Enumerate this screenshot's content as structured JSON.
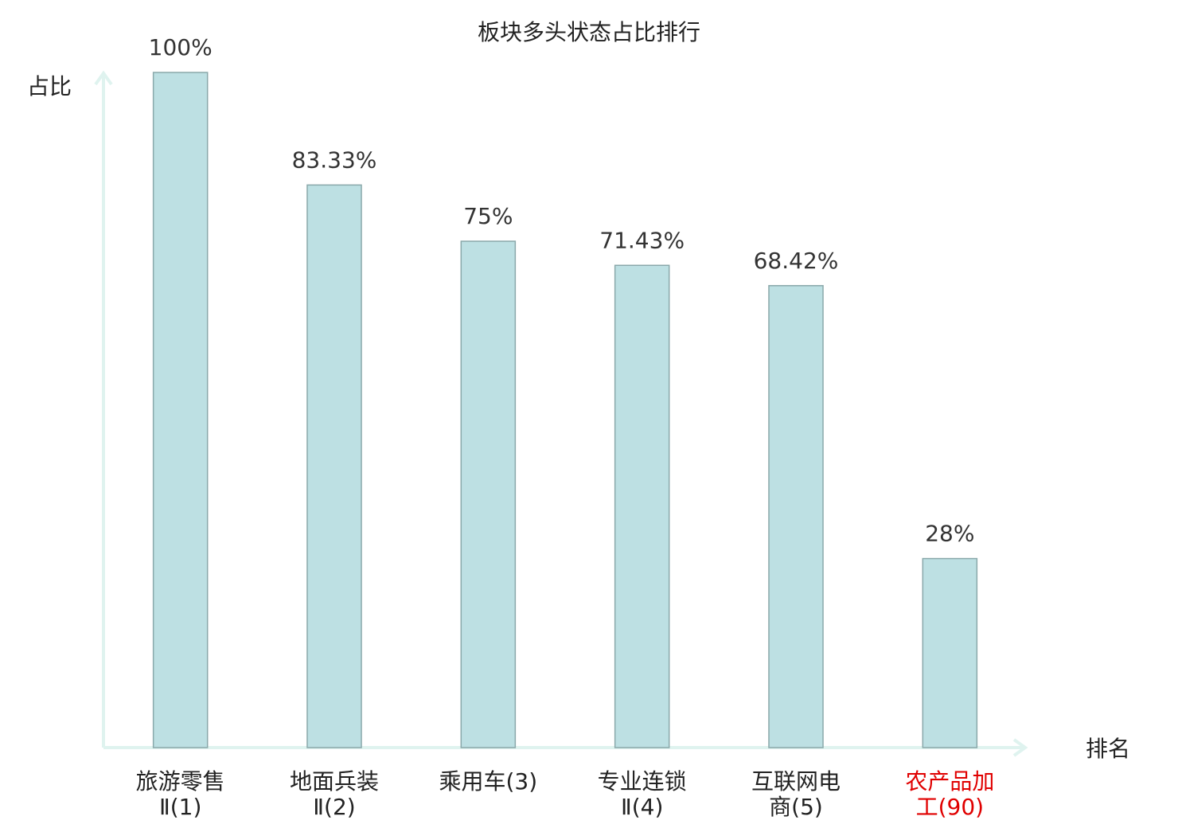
{
  "chart_data": {
    "type": "bar",
    "title": "板块多头状态占比排行",
    "y_label": "占比",
    "x_label": "排名",
    "categories": [
      [
        "旅游零售",
        "Ⅱ(1)"
      ],
      [
        "地面兵装",
        "Ⅱ(2)"
      ],
      [
        "乘用车(3)"
      ],
      [
        "专业连锁",
        "Ⅱ(4)"
      ],
      [
        "互联网电",
        "商(5)"
      ],
      [
        "农产品加",
        "工(90)"
      ]
    ],
    "category_colors": [
      "#222222",
      "#222222",
      "#222222",
      "#222222",
      "#222222",
      "#e00000"
    ],
    "values": [
      100,
      83.33,
      75,
      71.43,
      68.42,
      28
    ],
    "value_labels": [
      "100%",
      "83.33%",
      "75%",
      "71.43%",
      "68.42%",
      "28%"
    ],
    "color": "#bde0e3",
    "edge_color": "#8aa8aa",
    "ylim": [
      0,
      100
    ]
  }
}
